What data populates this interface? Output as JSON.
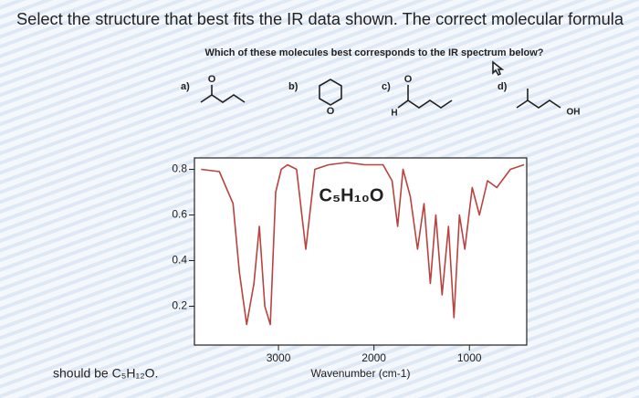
{
  "header": {
    "text": "Select the structure that best fits the IR data shown. The correct molecular formula"
  },
  "question": "Which of these molecules best corresponds to the IR spectrum below?",
  "molecules": [
    {
      "label": "a)",
      "atoms": [
        "O"
      ]
    },
    {
      "label": "b)",
      "atoms": [
        "O"
      ]
    },
    {
      "label": "c)",
      "atoms": [
        "O",
        "H"
      ]
    },
    {
      "label": "d)",
      "atoms": [
        "OH"
      ]
    }
  ],
  "footer": "should be C₅H₁₂O.",
  "chart_data": {
    "type": "line",
    "annotation": "C₅H₁₀O",
    "xlabel": "Wavenumber (cm-1)",
    "x": [
      3810,
      3619,
      3476,
      3410,
      3333,
      3257,
      3200,
      3143,
      3086,
      3029,
      2971,
      2905,
      2810,
      2714,
      2619,
      2476,
      2286,
      2095,
      1905,
      1810,
      1752,
      1695,
      1619,
      1543,
      1476,
      1410,
      1352,
      1286,
      1219,
      1162,
      1105,
      1048,
      971,
      895,
      810,
      714,
      571,
      429
    ],
    "series": [
      {
        "color": "#b8433f",
        "values": [
          0.8,
          0.79,
          0.65,
          0.35,
          0.12,
          0.3,
          0.55,
          0.2,
          0.12,
          0.7,
          0.8,
          0.82,
          0.8,
          0.45,
          0.8,
          0.82,
          0.83,
          0.82,
          0.82,
          0.75,
          0.55,
          0.8,
          0.68,
          0.45,
          0.65,
          0.3,
          0.6,
          0.25,
          0.55,
          0.15,
          0.6,
          0.45,
          0.72,
          0.6,
          0.75,
          0.72,
          0.8,
          0.82
        ]
      }
    ],
    "xlim": [
      3880,
      400
    ],
    "ylim": [
      0.03,
      0.85
    ],
    "xticks": [
      3000,
      2000,
      1000
    ],
    "yticks": [
      0.8,
      0.6,
      0.4,
      0.2
    ]
  }
}
